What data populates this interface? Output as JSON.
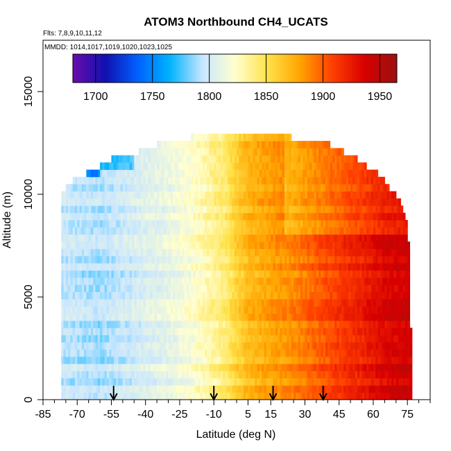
{
  "chart_data": {
    "type": "heatmap",
    "title": "ATOM3 Northbound CH4_UCATS",
    "subtitle_flights": "Flts: 7,8,9,10,11,12",
    "subtitle_mmdd": "MMDD: 1014,1017,1019,1020,1023,1025",
    "xlabel": "Latitude (deg N)",
    "ylabel": "Altitude (m)",
    "xlim": [
      -85,
      85
    ],
    "ylim": [
      0,
      17500
    ],
    "x_ticks": [
      -85,
      -70,
      -55,
      -40,
      -25,
      -10,
      5,
      15,
      30,
      45,
      60,
      75
    ],
    "x_minor_ticks": [
      -80,
      -75,
      -65,
      -60,
      -50,
      -45,
      -35,
      -30,
      -20,
      -15,
      -5,
      0,
      10,
      20,
      25,
      35,
      40,
      50,
      55,
      65,
      70,
      80,
      85
    ],
    "y_ticks": [
      0,
      5000,
      10000,
      15000
    ],
    "colorbar": {
      "range": [
        1680,
        1965
      ],
      "ticks": [
        1700,
        1750,
        1800,
        1850,
        1900,
        1950
      ],
      "placement": "top-inside"
    },
    "arrows_latitude": [
      -54,
      -10,
      16,
      38
    ],
    "coverage_envelope": [
      {
        "lat": -77,
        "top_alt": 10000
      },
      {
        "lat": -72,
        "top_alt": 10700
      },
      {
        "lat": -62,
        "top_alt": 11200
      },
      {
        "lat": -54,
        "top_alt": 11800
      },
      {
        "lat": -42,
        "top_alt": 12100
      },
      {
        "lat": -33,
        "top_alt": 12500
      },
      {
        "lat": -19,
        "top_alt": 12800
      },
      {
        "lat": -3,
        "top_alt": 12800
      },
      {
        "lat": 22,
        "top_alt": 12800
      },
      {
        "lat": 40,
        "top_alt": 12500
      },
      {
        "lat": 52,
        "top_alt": 11800
      },
      {
        "lat": 62,
        "top_alt": 11000
      },
      {
        "lat": 70,
        "top_alt": 10000
      },
      {
        "lat": 74,
        "top_alt": 9000
      },
      {
        "lat": 76,
        "top_alt": 7300
      },
      {
        "lat": 77,
        "top_alt": 0
      }
    ],
    "ch4_profile_by_latitude": [
      {
        "lat": -75,
        "ch4": 1795
      },
      {
        "lat": -60,
        "ch4": 1790
      },
      {
        "lat": -45,
        "ch4": 1800
      },
      {
        "lat": -30,
        "ch4": 1810
      },
      {
        "lat": -20,
        "ch4": 1820
      },
      {
        "lat": -10,
        "ch4": 1835
      },
      {
        "lat": -5,
        "ch4": 1842
      },
      {
        "lat": 0,
        "ch4": 1858
      },
      {
        "lat": 5,
        "ch4": 1870
      },
      {
        "lat": 15,
        "ch4": 1880
      },
      {
        "lat": 25,
        "ch4": 1888
      },
      {
        "lat": 35,
        "ch4": 1900
      },
      {
        "lat": 45,
        "ch4": 1912
      },
      {
        "lat": 55,
        "ch4": 1922
      },
      {
        "lat": 65,
        "ch4": 1935
      },
      {
        "lat": 75,
        "ch4": 1940
      }
    ]
  },
  "colors": {
    "scale": [
      "#6a0dad",
      "#1010b0",
      "#0060ff",
      "#00b4ff",
      "#c8e6ff",
      "#ffffd0",
      "#ffe24a",
      "#ffa500",
      "#ff4000",
      "#d80000",
      "#9a1010"
    ]
  }
}
